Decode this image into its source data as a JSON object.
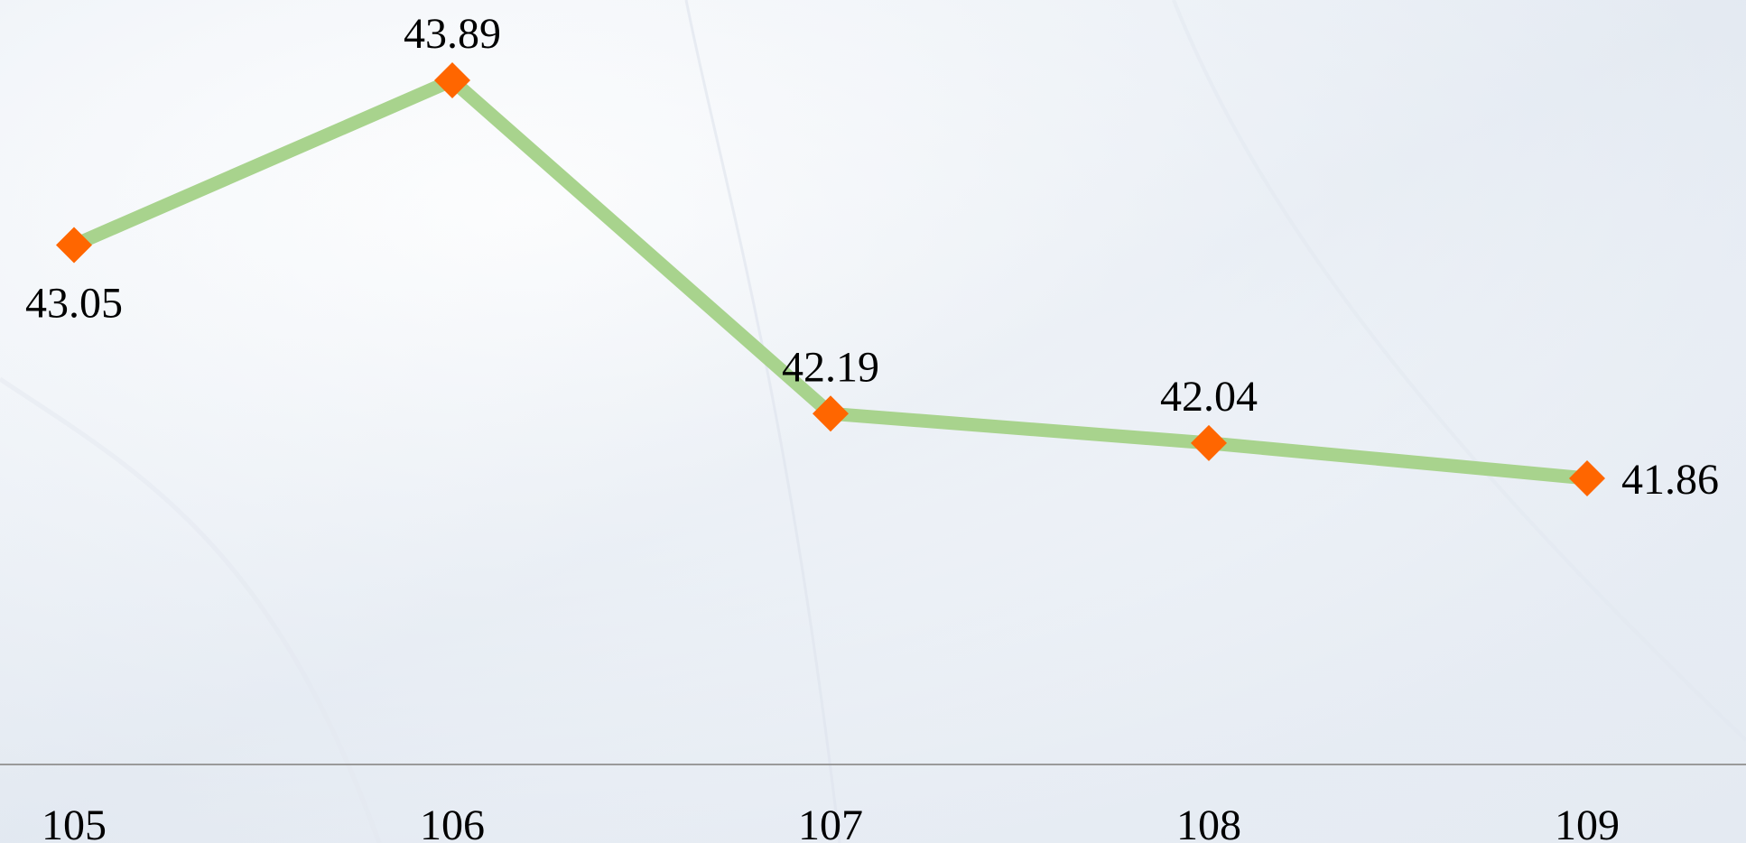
{
  "chart_data": {
    "type": "line",
    "title": "",
    "xlabel": "",
    "ylabel": "",
    "categories": [
      "105",
      "106",
      "107",
      "108",
      "109"
    ],
    "series": [
      {
        "values": [
          43.05,
          43.89,
          42.19,
          42.04,
          41.86
        ],
        "line_color": "#a8d38d",
        "marker_color": "#ff6600",
        "marker": "diamond"
      }
    ],
    "data_labels": [
      "43.05",
      "43.89",
      "42.19",
      "42.04",
      "41.86"
    ],
    "ylim": [
      40.0,
      44.3
    ],
    "grid": false,
    "legend": "none"
  },
  "colors": {
    "background": "#eef2f7",
    "axis_line": "#9a9a9a",
    "text": "#000000"
  }
}
